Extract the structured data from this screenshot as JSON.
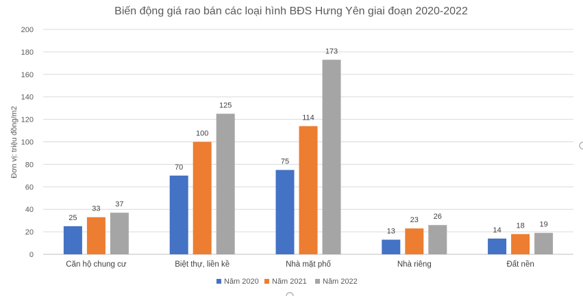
{
  "chart_data": {
    "type": "bar",
    "title": "Biến động giá rao bán các loại hình BĐS Hưng Yên giai đoạn 2020-2022",
    "xlabel": "",
    "ylabel": "Đơn vị: triệu đồng/m2",
    "ylim": [
      0,
      200
    ],
    "yticks": [
      0,
      20,
      40,
      60,
      80,
      100,
      120,
      140,
      160,
      180,
      200
    ],
    "grid": true,
    "legend_position": "bottom",
    "categories": [
      "Căn hộ chung cư",
      "Biệt thự, liền kề",
      "Nhà mặt phố",
      "Nhà riêng",
      "Đất nền"
    ],
    "series": [
      {
        "name": "Năm 2020",
        "color": "#4472c4",
        "values": [
          25,
          70,
          75,
          13,
          14
        ]
      },
      {
        "name": "Năm 2021",
        "color": "#ed7d31",
        "values": [
          33,
          100,
          114,
          23,
          18
        ]
      },
      {
        "name": "Năm 2022",
        "color": "#a5a5a5",
        "values": [
          37,
          125,
          173,
          26,
          19
        ]
      }
    ]
  }
}
